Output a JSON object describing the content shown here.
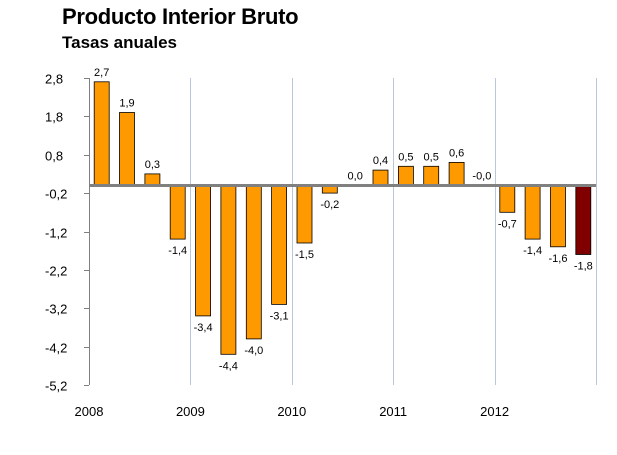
{
  "header": {
    "title": "Producto Interior Bruto",
    "subtitle": "Tasas anuales"
  },
  "colors": {
    "bar": "#FF9900",
    "bar_highlight": "#800000",
    "bar_stroke": "#000000",
    "gridline": "#B8C8DC",
    "axis": "#808080"
  },
  "chart_data": {
    "type": "bar",
    "title": "Producto Interior Bruto",
    "subtitle": "Tasas anuales",
    "xlabel": "",
    "ylabel": "",
    "ylim": [
      -5.2,
      2.8
    ],
    "y_ticks": [
      2.8,
      1.8,
      0.8,
      -0.2,
      -1.2,
      -2.2,
      -3.2,
      -4.2,
      -5.2
    ],
    "y_tick_labels": [
      "2,8",
      "1,8",
      "0,8",
      "-0,2",
      "-1,2",
      "-2,2",
      "-3,2",
      "-4,2",
      "-5,2"
    ],
    "baseline": 0,
    "grid": "vertical lines between years",
    "x_group_labels": [
      "2008",
      "2009",
      "2010",
      "2011",
      "2012"
    ],
    "bars_per_group": 4,
    "values": [
      2.7,
      1.9,
      0.3,
      -1.4,
      -3.4,
      -4.4,
      -4.0,
      -3.1,
      -1.5,
      -0.2,
      0.0,
      0.4,
      0.5,
      0.5,
      0.6,
      -0.0,
      -0.7,
      -1.4,
      -1.6,
      -1.8
    ],
    "value_labels": [
      "2,7",
      "1,9",
      "0,3",
      "-1,4",
      "-3,4",
      "-4,4",
      "-4,0",
      "-3,1",
      "-1,5",
      "-0,2",
      "0,0",
      "0,4",
      "0,5",
      "0,5",
      "0,6",
      "-0,0",
      "-0,7",
      "-1,4",
      "-1,6",
      "-1,8"
    ],
    "highlight_index": 19
  }
}
